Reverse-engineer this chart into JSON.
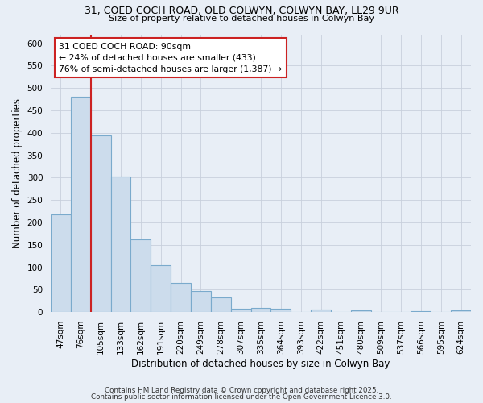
{
  "title1": "31, COED COCH ROAD, OLD COLWYN, COLWYN BAY, LL29 9UR",
  "title2": "Size of property relative to detached houses in Colwyn Bay",
  "xlabel": "Distribution of detached houses by size in Colwyn Bay",
  "ylabel": "Number of detached properties",
  "categories": [
    "47sqm",
    "76sqm",
    "105sqm",
    "133sqm",
    "162sqm",
    "191sqm",
    "220sqm",
    "249sqm",
    "278sqm",
    "307sqm",
    "335sqm",
    "364sqm",
    "393sqm",
    "422sqm",
    "451sqm",
    "480sqm",
    "509sqm",
    "537sqm",
    "566sqm",
    "595sqm",
    "624sqm"
  ],
  "values": [
    218,
    480,
    395,
    303,
    163,
    105,
    65,
    47,
    32,
    8,
    9,
    8,
    0,
    6,
    0,
    4,
    0,
    0,
    2,
    0,
    3
  ],
  "bar_color": "#ccdcec",
  "bar_edge_color": "#7aaacc",
  "highlight_bar_idx": 1,
  "highlight_color": "#cc2222",
  "annotation_line1": "31 COED COCH ROAD: 90sqm",
  "annotation_line2": "← 24% of detached houses are smaller (433)",
  "annotation_line3": "76% of semi-detached houses are larger (1,387) →",
  "annotation_box_color": "#ffffff",
  "annotation_box_edge": "#cc2222",
  "bg_color": "#e8eef6",
  "grid_color": "#c8d0dc",
  "footer1": "Contains HM Land Registry data © Crown copyright and database right 2025.",
  "footer2": "Contains public sector information licensed under the Open Government Licence 3.0.",
  "ylim": [
    0,
    620
  ],
  "yticks": [
    0,
    50,
    100,
    150,
    200,
    250,
    300,
    350,
    400,
    450,
    500,
    550,
    600
  ]
}
